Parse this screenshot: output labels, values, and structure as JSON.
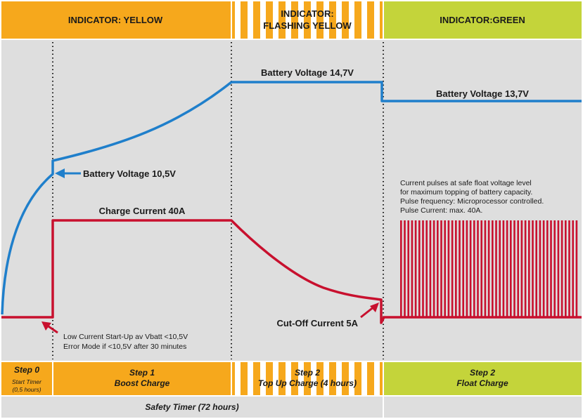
{
  "colors": {
    "yellow": "#f6a81c",
    "green": "#c4d43a",
    "panel": "#dedede",
    "voltage": "#1f7fcb",
    "current": "#c8102e"
  },
  "header": {
    "yellow": "INDICATOR: YELLOW",
    "flashing_line1": "INDICATOR:",
    "flashing_line2": "FLASHING YELLOW",
    "green": "INDICATOR:GREEN"
  },
  "labels": {
    "voltage_start": "Battery Voltage 10,5V",
    "voltage_boost": "Battery Voltage 14,7V",
    "voltage_float": "Battery Voltage 13,7V",
    "charge_current": "Charge Current 40A",
    "cutoff_current": "Cut-Off Current 5A"
  },
  "notes": {
    "low_current": [
      "Low Current Start-Up av Vbatt <10,5V",
      "Error Mode if <10,5V after 30 minutes"
    ],
    "pulses": [
      "Current pulses at safe float voltage level",
      "for maximum topping of battery capacity.",
      "Pulse frequency: Microprocessor controlled.",
      "Pulse Current: max. 40A."
    ]
  },
  "steps": [
    {
      "title": "Step 0",
      "sub1": "Start Timer",
      "sub2": "(0,5 hours)"
    },
    {
      "title": "Step 1",
      "sub1": "Boost Charge"
    },
    {
      "title": "Step 2",
      "sub1": "Top Up Charge (4 hours)"
    },
    {
      "title": "Step 2",
      "sub1": "Float Charge"
    }
  ],
  "footer": {
    "safety_timer": "Safety Timer (72 hours)"
  }
}
